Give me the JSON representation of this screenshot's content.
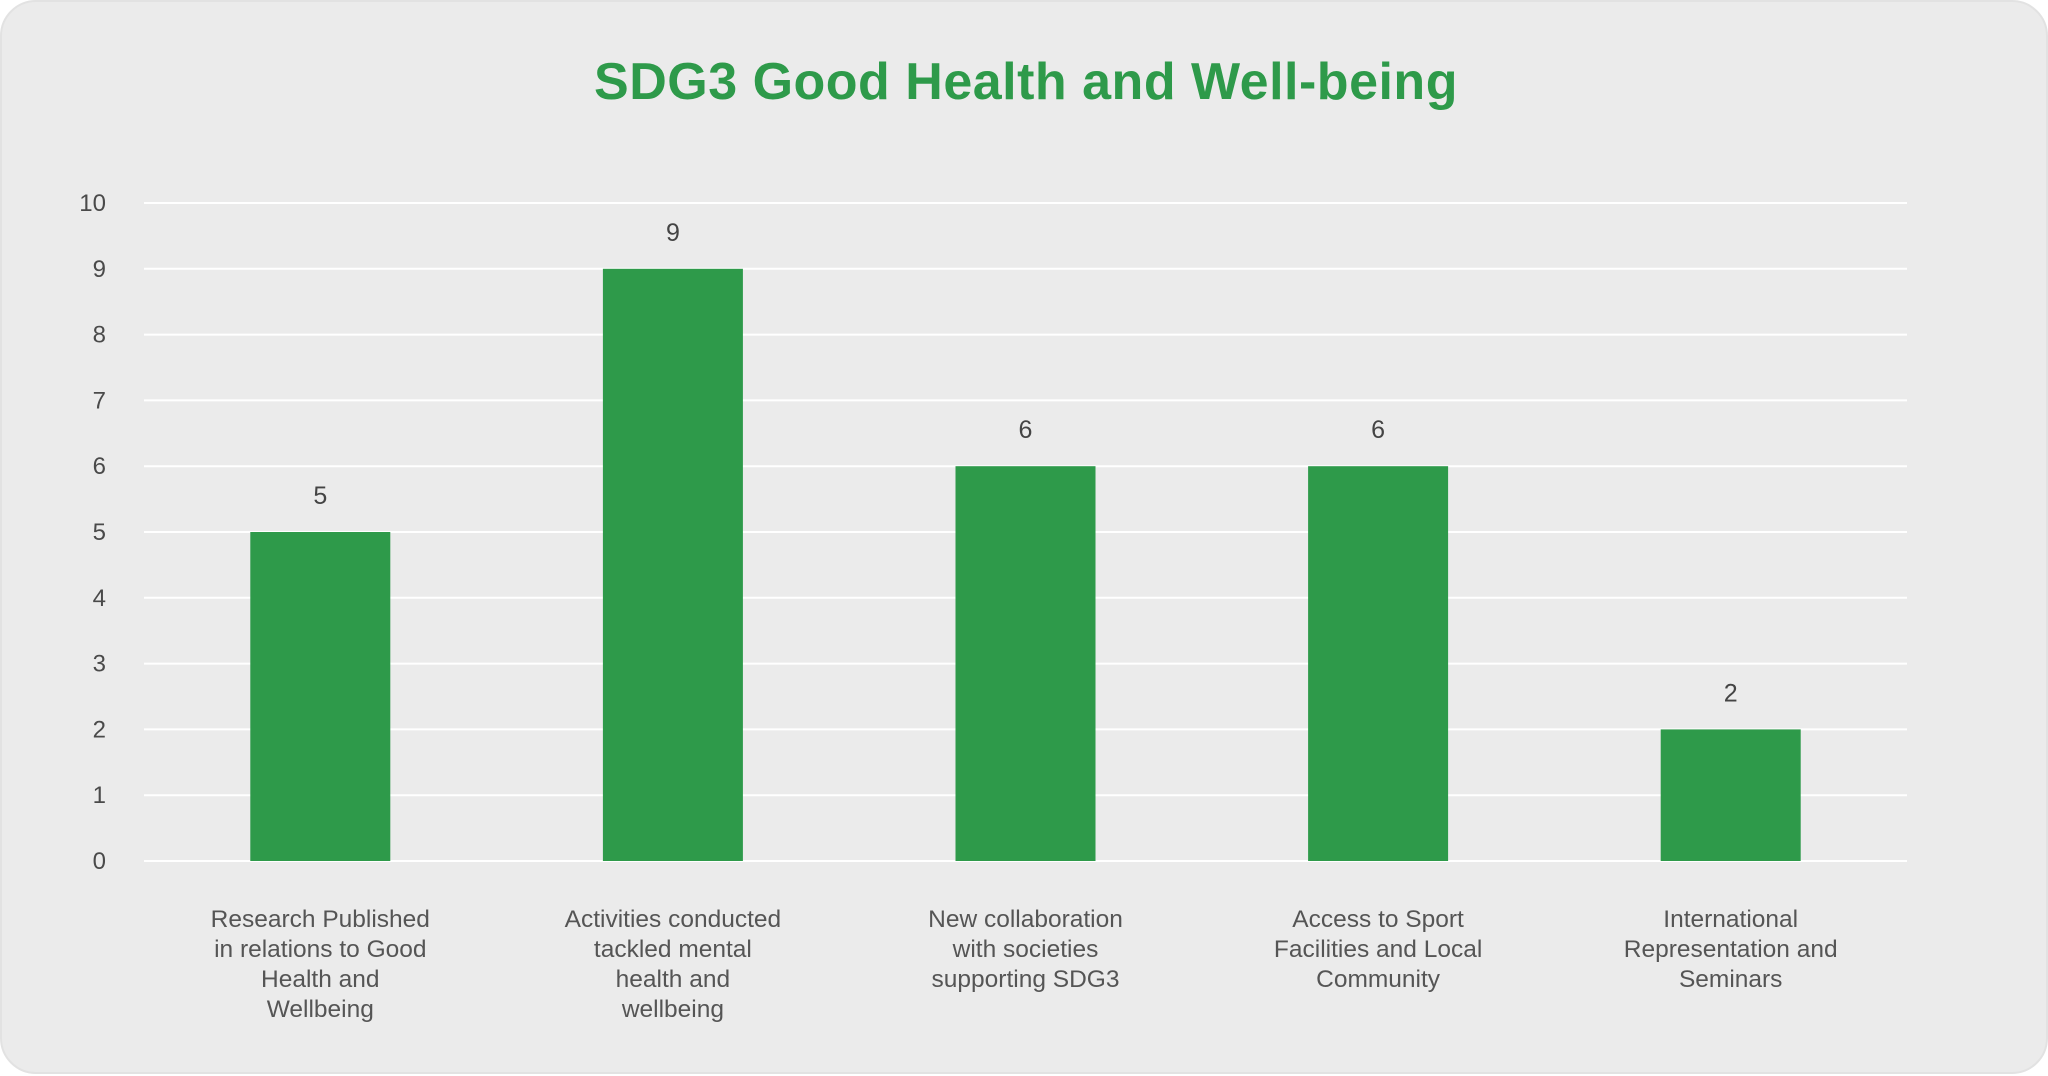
{
  "chart_data": {
    "type": "bar",
    "title": "SDG3 Good Health and Well-being",
    "categories": [
      [
        "Research Published",
        "in relations to Good",
        "Health and",
        "Wellbeing"
      ],
      [
        "Activities conducted",
        "tackled mental",
        "health and",
        "wellbeing"
      ],
      [
        "New collaboration",
        "with societies",
        "supporting SDG3"
      ],
      [
        "Access to Sport",
        "Facilities and Local",
        "Community"
      ],
      [
        "International",
        "Representation and",
        "Seminars"
      ]
    ],
    "values": [
      5,
      9,
      6,
      6,
      2
    ],
    "value_labels": [
      "5",
      "9",
      "6",
      "6",
      "2"
    ],
    "y_ticks": [
      "0",
      "1",
      "2",
      "3",
      "4",
      "5",
      "6",
      "7",
      "8",
      "9",
      "10"
    ],
    "ylim": [
      0,
      10
    ],
    "xlabel": "",
    "ylabel": "",
    "grid": true,
    "legend": "none",
    "colors": {
      "bar": "#2e9a4a",
      "title": "#2e9a4a",
      "grid": "#ffffff",
      "background": "#ebebeb"
    }
  }
}
